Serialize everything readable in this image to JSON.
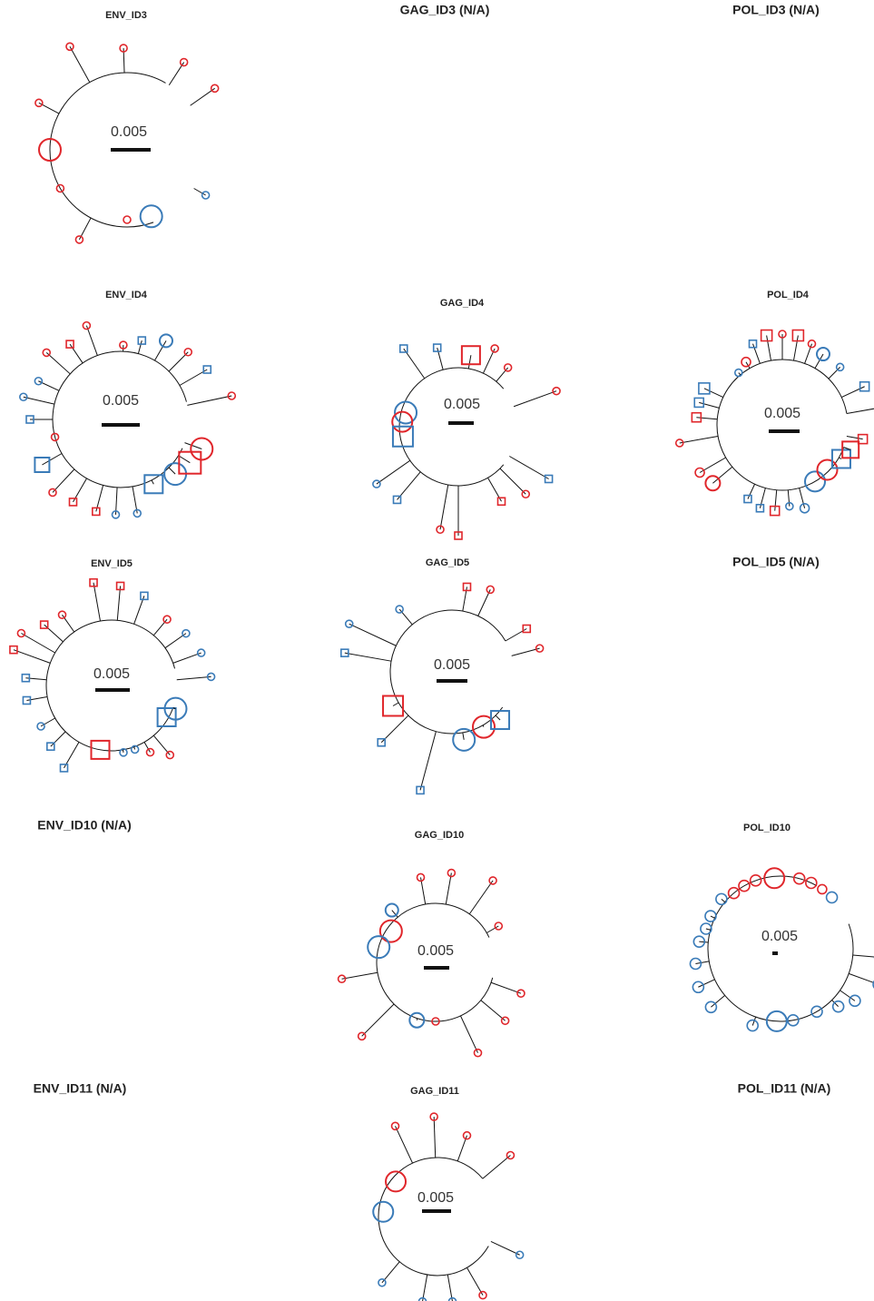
{
  "panels": [
    {
      "title": "ENV_ID3",
      "scale": "0.005"
    },
    {
      "title": "GAG_ID3 (N/A)"
    },
    {
      "title": "POL_ID3 (N/A)"
    },
    {
      "title": "ENV_ID4",
      "scale": "0.005"
    },
    {
      "title": "GAG_ID4",
      "scale": "0.005"
    },
    {
      "title": "POL_ID4",
      "scale": "0.005"
    },
    {
      "title": "ENV_ID5",
      "scale": "0.005"
    },
    {
      "title": "GAG_ID5",
      "scale": "0.005"
    },
    {
      "title": "POL_ID5 (N/A)"
    },
    {
      "title": "ENV_ID10 (N/A)"
    },
    {
      "title": "GAG_ID10",
      "scale": "0.005"
    },
    {
      "title": "POL_ID10",
      "scale": "0.005"
    },
    {
      "title": "ENV_ID11 (N/A)"
    },
    {
      "title": "GAG_ID11",
      "scale": "0.005"
    },
    {
      "title": "POL_ID11 (N/A)"
    }
  ]
}
